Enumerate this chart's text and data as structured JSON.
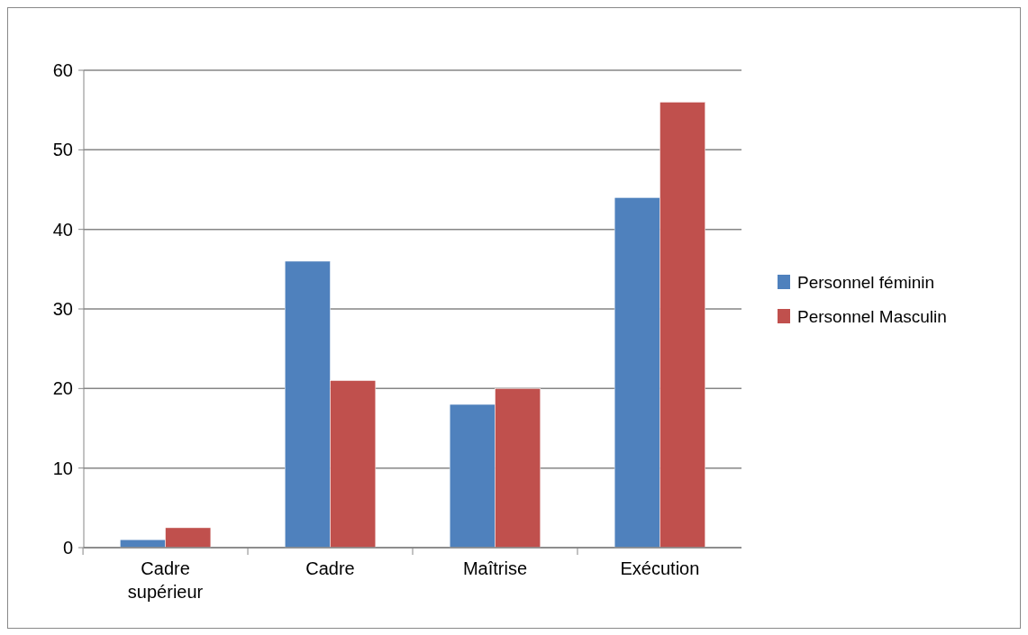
{
  "chart_data": {
    "type": "bar",
    "categories": [
      "Cadre supérieur",
      "Cadre",
      "Maîtrise",
      "Exécution"
    ],
    "series": [
      {
        "name": "Personnel féminin",
        "color": "#4f81bd",
        "values": [
          1,
          36,
          18,
          44
        ]
      },
      {
        "name": "Personnel Masculin",
        "color": "#c0504d",
        "values": [
          2.5,
          21,
          20,
          56
        ]
      }
    ],
    "ylim": [
      0,
      60
    ],
    "yticks": [
      0,
      10,
      20,
      30,
      40,
      50,
      60
    ],
    "grid": "y",
    "legend": "right"
  }
}
